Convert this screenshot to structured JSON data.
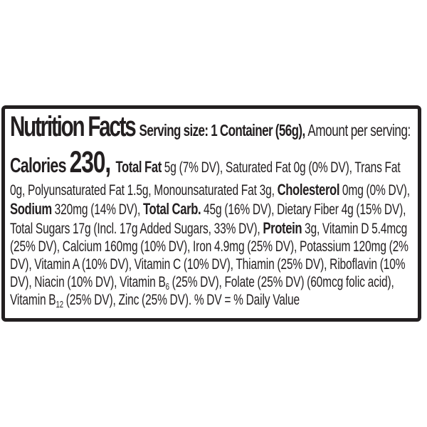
{
  "page": {
    "background_color": "#ffffff",
    "ink_color": "#231f20"
  },
  "label": {
    "border_color": "#231f20",
    "background_color": "#ffffff",
    "segments": [
      {
        "text": "Nutrition Facts ",
        "style": "title"
      },
      {
        "text": "Serving size: 1 Container (56g), ",
        "style": "serving"
      },
      {
        "text": "Amount per serving: ",
        "style": "normal-lg"
      },
      {
        "text": "Calories ",
        "style": "calories-label"
      },
      {
        "text": "230, ",
        "style": "calories-value"
      },
      {
        "text": "Total Fat ",
        "style": "bold"
      },
      {
        "text": "5g (7% DV), Saturated Fat 0g (0% DV), Trans Fat 0g, Polyunsaturated Fat 1.5g, Monounsaturated Fat 3g, ",
        "style": "normal"
      },
      {
        "text": "Cholesterol",
        "style": "bold"
      },
      {
        "text": " 0mg (0% DV), ",
        "style": "normal"
      },
      {
        "text": "Sodium",
        "style": "bold"
      },
      {
        "text": " 320mg (14% DV), ",
        "style": "normal"
      },
      {
        "text": "Total Carb.",
        "style": "bold"
      },
      {
        "text": " 45g (16% DV), Dietary Fiber 4g (15% DV), Total Sugars 17g (Incl. 17g Added Sugars, 33% DV), ",
        "style": "normal"
      },
      {
        "text": "Protein",
        "style": "bold"
      },
      {
        "text": " 3g, Vitamin D 5.4mcg (25% DV), Calcium 160mg (10% DV), Iron 4.9mg (25% DV), Potassium 120mg (2% DV), Vitamin A (10% DV), Vitamin C (10% DV), Thiamin (25% DV), Riboflavin (10% DV), Niacin (10% DV), Vitamin B",
        "style": "normal"
      },
      {
        "text": "6",
        "style": "sub"
      },
      {
        "text": " (25% DV), Folate (25% DV) (60mcg folic acid), Vitamin B",
        "style": "normal"
      },
      {
        "text": "12",
        "style": "sub"
      },
      {
        "text": " (25% DV), Zinc (25% DV). % DV = % Daily Value",
        "style": "normal"
      }
    ]
  }
}
